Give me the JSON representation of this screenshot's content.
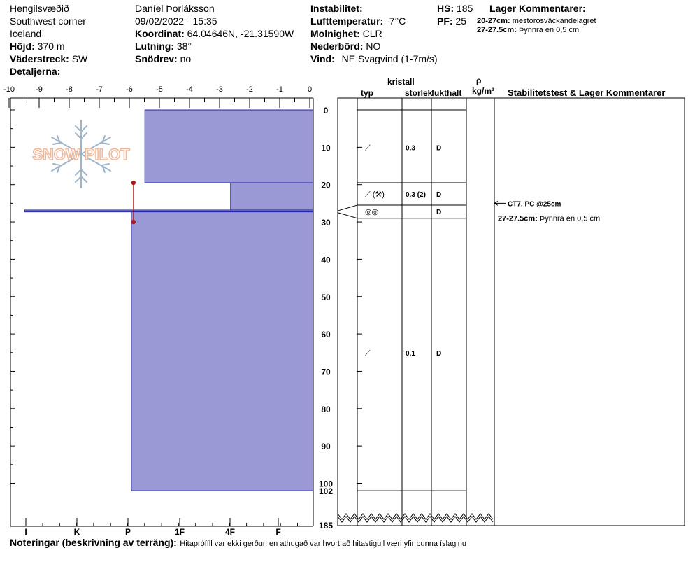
{
  "header": {
    "location": "Hengilsvæðið",
    "region": "Southwest corner",
    "country": "Iceland",
    "elevation_label": "Höjd:",
    "elevation_value": "370 m",
    "aspect_label": "Väderstreck:",
    "aspect_value": "SW",
    "details_label": "Detaljerna:",
    "observer": "Daníel Þorláksson",
    "datetime": "09/02/2022 - 15:35",
    "coord_label": "Koordinat:",
    "coord_value": "64.04646N, -21.31590W",
    "slope_label": "Lutning:",
    "slope_value": "38°",
    "drift_label": "Snödrev:",
    "drift_value": "no",
    "instability_label": "Instabilitet:",
    "airtemp_label": "Lufttemperatur:",
    "airtemp_value": "-7°C",
    "sky_label": "Molnighet:",
    "sky_value": "CLR",
    "precip_label": "Nederbörd:",
    "precip_value": "NO",
    "wind_label": "Vind:",
    "wind_value": "NE Svagvind (1-7m/s)",
    "hs_label": "HS:",
    "hs_value": "185",
    "pf_label": "PF:",
    "pf_value": "25",
    "layer_comments_title": "Lager Kommentarer:",
    "layer_comments": [
      {
        "range": "20-27cm:",
        "text": "mestorosväckandelagret"
      },
      {
        "range": "27-27.5cm:",
        "text": "Þynnra en 0,5 cm"
      }
    ]
  },
  "columns": {
    "crystal_label": "kristall",
    "type_label": "typ",
    "size_label": "storlek",
    "moisture_label": "fukthalt",
    "density_symbol": "ρ",
    "density_unit": "kg/m³",
    "stability_label": "Stabilitetstest & Lager Kommentarer"
  },
  "chart_data": {
    "type": "snow-profile",
    "temp_axis": {
      "ticks": [
        -10,
        -9,
        -8,
        -7,
        -6,
        -5,
        -4,
        -3,
        -2,
        -1,
        0
      ],
      "range": [
        -10,
        0
      ]
    },
    "hardness_axis": {
      "ticks": [
        "I",
        "K",
        "P",
        "1F",
        "4F",
        "F"
      ]
    },
    "depth_axis": {
      "ticks": [
        0,
        10,
        20,
        30,
        40,
        50,
        60,
        70,
        80,
        90,
        100
      ],
      "range": [
        0,
        102
      ],
      "extra_ticks": [
        102,
        185
      ],
      "total_depth": 185
    },
    "hardness_layers": [
      {
        "top": 0,
        "bottom": 19.5,
        "hardness_index": 5.6
      },
      {
        "top": 19.5,
        "bottom": 26.8,
        "hardness_index": 2.75
      },
      {
        "top": 26.8,
        "bottom": 27.3,
        "hardness_index": 9.6
      },
      {
        "top": 27.3,
        "bottom": 102,
        "hardness_index": 6.05
      }
    ],
    "measurement_marker": {
      "x_index": 6.05,
      "top": 19.5,
      "bottom": 30
    },
    "layer_boundaries": [
      0,
      19.5,
      25.5,
      29,
      102
    ],
    "layers": [
      {
        "center": 10,
        "type": "⟋",
        "size": "0.3",
        "moisture": "D"
      },
      {
        "center": 22.5,
        "type": "⟋ (⚒)",
        "size": "0.3 (2)",
        "moisture": "D"
      },
      {
        "center": 27.2,
        "type": "◎◎",
        "size": "",
        "moisture": "D"
      },
      {
        "center": 65,
        "type": "⟋",
        "size": "0.1",
        "moisture": "D"
      }
    ],
    "stability_tests": [
      {
        "depth": 25,
        "text": "CT7, PC @25cm"
      }
    ],
    "layer_note": {
      "depth": 29,
      "range": "27-27.5cm:",
      "text": "Þynnra en 0,5 cm"
    }
  },
  "logo": {
    "text": "SNOW PILOT"
  },
  "footer": {
    "notes_label": "Noteringar (beskrivning av terräng):",
    "notes_text": "Hitaprófíll var ekki gerður, en athugað var hvort að hitastigull væri yfir þunna íslaginu"
  },
  "colors": {
    "hardness_fill": "#9a99d6",
    "hardness_stroke": "#2222aa",
    "marker": "#b01c1c",
    "logo_orange": "#f0b89a",
    "logo_blue": "#a0b4c8"
  }
}
